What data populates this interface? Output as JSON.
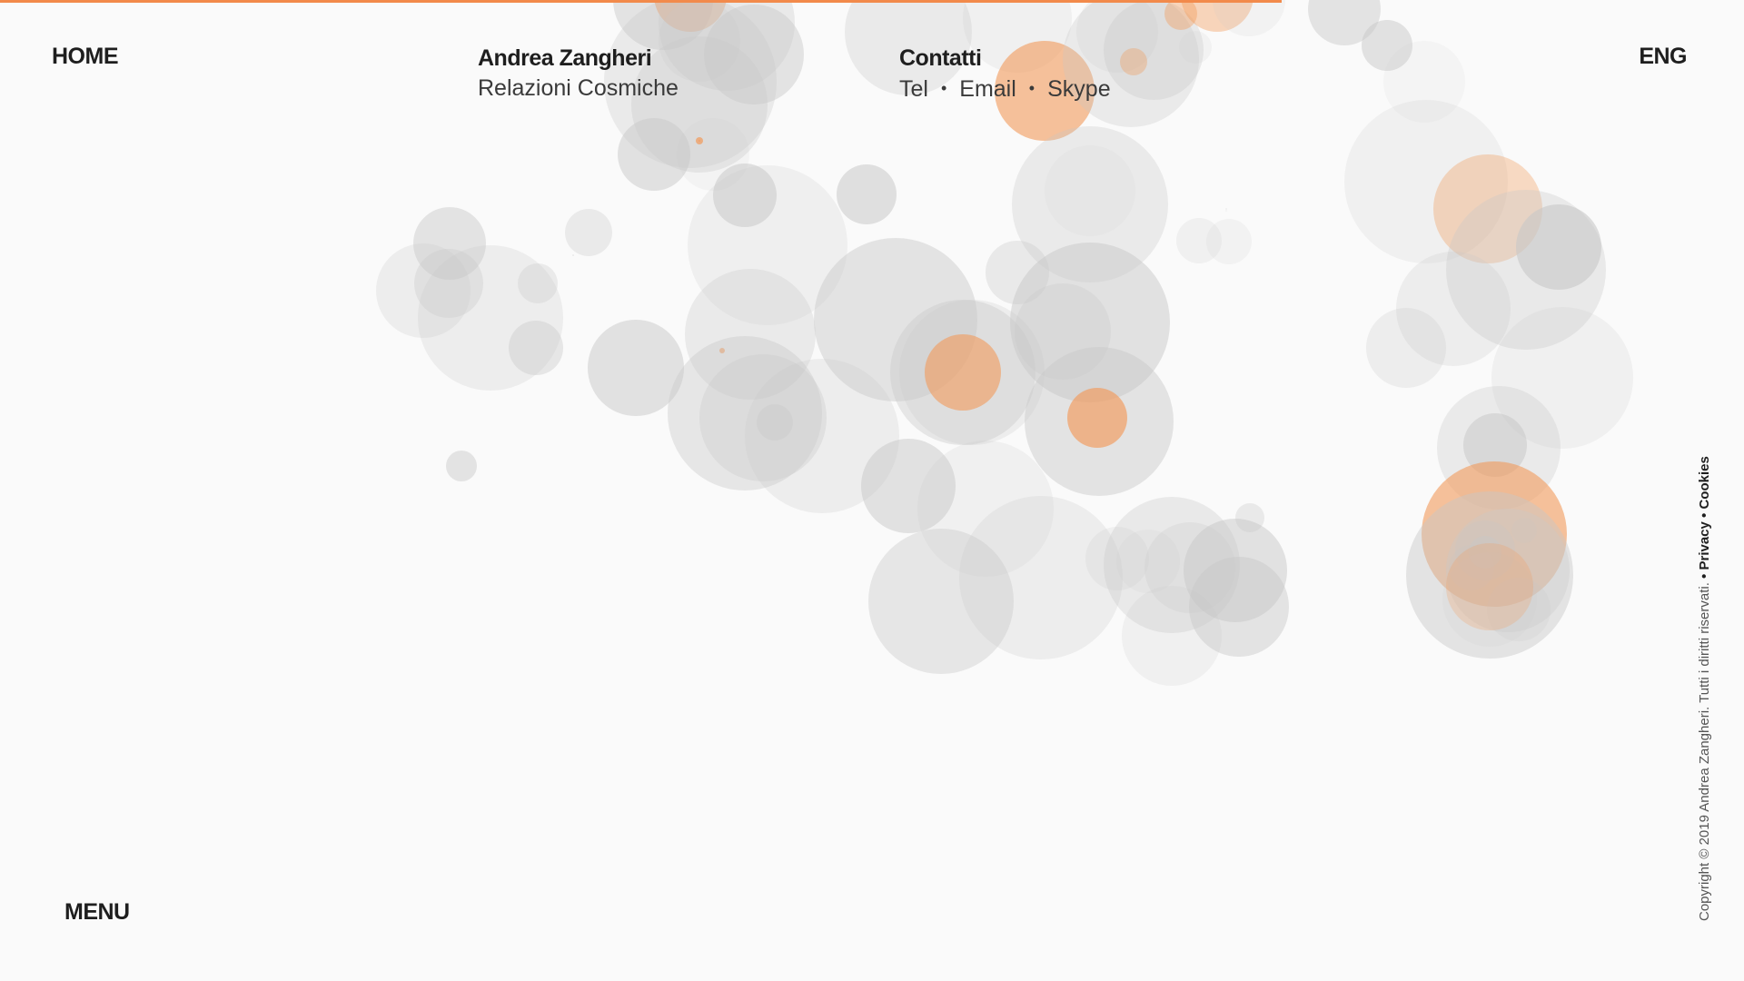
{
  "colors": {
    "accent": "#f28a4b",
    "background": "#fafafa",
    "bubble_grey": "#c8c8c8",
    "bubble_orange": "#f29a5a"
  },
  "scroll_progress": 0.735,
  "nav": {
    "home_label": "HOME",
    "language_label": "ENG",
    "menu_label": "MENU"
  },
  "identity": {
    "name": "Andrea Zangheri",
    "tagline": "Relazioni Cosmiche"
  },
  "contacts": {
    "title": "Contatti",
    "tel_label": "Tel",
    "email_label": "Email",
    "skype_label": "Skype",
    "separator": "•"
  },
  "legal": {
    "copyright": "Copyright © 2019 Andrea Zangheri. Tutti i diritti riservati.",
    "privacy_label": "• Privacy",
    "cookies_label": "• Cookies"
  }
}
